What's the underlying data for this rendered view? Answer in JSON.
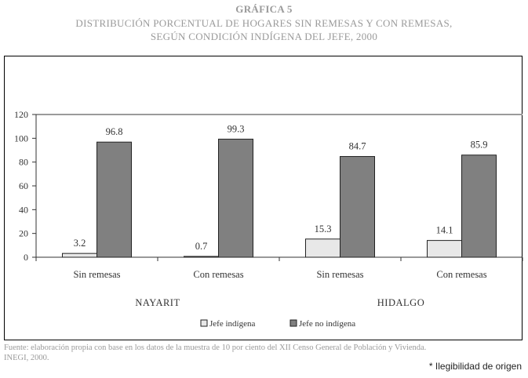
{
  "header": {
    "title": "GRÁFICA 5",
    "subtitle_line1": "DISTRIBUCIÓN PORCENTUAL DE HOGARES SIN REMESAS Y CON REMESAS,",
    "subtitle_line2": "SEGÚN CONDICIÓN INDÍGENA DEL JEFE, 2000"
  },
  "footer": {
    "source_line1": "Fuente: elaboración propia con base en los datos de la muestra de 10 por ciento del XII Censo General de Población y Vivienda.",
    "source_line2": "INEGI, 2000.",
    "note": "* Ilegibilidad de origen"
  },
  "chart_data": {
    "type": "bar",
    "categories": [
      "Sin remesas",
      "Con remesas",
      "Sin remesas",
      "Con remesas"
    ],
    "groups": [
      {
        "label": "NAYARIT",
        "categories": [
          0,
          1
        ]
      },
      {
        "label": "HIDALGO",
        "categories": [
          2,
          3
        ]
      }
    ],
    "series": [
      {
        "name": "Jefe indígena",
        "values": [
          3.2,
          0.7,
          15.3,
          14.1
        ],
        "color": "#e8e8e8"
      },
      {
        "name": "Jefe no indígena",
        "values": [
          96.8,
          99.3,
          84.7,
          85.9
        ],
        "color": "#808080"
      }
    ],
    "value_labels": [
      [
        "3.2",
        "0.7",
        "15.3",
        "14.1"
      ],
      [
        "96.8",
        "99.3",
        "84.7",
        "85.9"
      ]
    ],
    "yticks": [
      0,
      20,
      40,
      60,
      80,
      100,
      120
    ],
    "ytick_labels": [
      "0",
      "20",
      "40",
      "60",
      "80",
      "100",
      "120"
    ],
    "ylim": [
      0,
      120
    ],
    "grid": false,
    "legend_position": "bottom-center"
  }
}
